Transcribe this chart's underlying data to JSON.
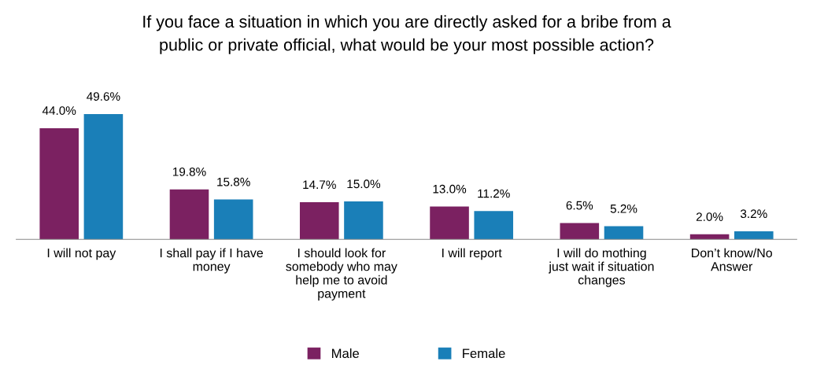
{
  "chart_data": {
    "type": "bar",
    "title": "If you face a situation in which you are directly asked for a bribe from a\npublic or private official, what would be your most possible action?",
    "categories": [
      "I will not pay",
      "I shall pay if I have\nmoney",
      "I should look for\nsomebody who may\nhelp me to avoid\npayment",
      "I will report",
      "I will do mothing\njust wait if situation\nchanges",
      "Don’t know/No\nAnswer"
    ],
    "series": [
      {
        "name": "Male",
        "color": "#7b2161",
        "values": [
          44.0,
          19.8,
          14.7,
          13.0,
          6.5,
          2.0
        ],
        "value_labels": [
          "44.0%",
          "19.8%",
          "14.7%",
          "13.0%",
          "6.5%",
          "2.0%"
        ]
      },
      {
        "name": "Female",
        "color": "#1a7fb8",
        "values": [
          49.6,
          15.8,
          15.0,
          11.2,
          5.2,
          3.2
        ],
        "value_labels": [
          "49.6%",
          "15.8%",
          "15.0%",
          "11.2%",
          "5.2%",
          "3.2%"
        ]
      }
    ],
    "legend": "bottom",
    "grid": false
  }
}
